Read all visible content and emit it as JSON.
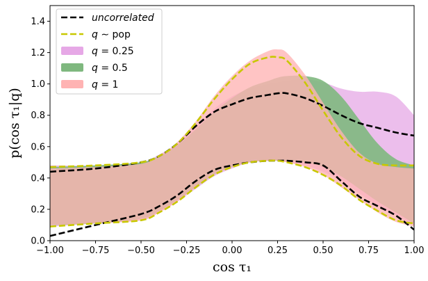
{
  "chart_data": {
    "type": "area",
    "xlabel": "cos τ₁",
    "ylabel": "p(cos τ₁|q)",
    "xlim": [
      -1.0,
      1.0
    ],
    "ylim": [
      0.0,
      1.5
    ],
    "xticks": [
      "−1.00",
      "−0.75",
      "−0.50",
      "−0.25",
      "0.00",
      "0.25",
      "0.50",
      "0.75",
      "1.00"
    ],
    "xtick_values": [
      -1.0,
      -0.75,
      -0.5,
      -0.25,
      0.0,
      0.25,
      0.5,
      0.75,
      1.0
    ],
    "yticks": [
      "0.0",
      "0.2",
      "0.4",
      "0.6",
      "0.8",
      "1.0",
      "1.2",
      "1.4"
    ],
    "ytick_values": [
      0.0,
      0.2,
      0.4,
      0.6,
      0.8,
      1.0,
      1.2,
      1.4
    ],
    "grid": false,
    "legend_position": "top-left",
    "x": [
      -1.0,
      -0.75,
      -0.5,
      -0.4,
      -0.3,
      -0.2,
      -0.1,
      0.0,
      0.1,
      0.2,
      0.25,
      0.3,
      0.4,
      0.5,
      0.6,
      0.7,
      0.8,
      0.9,
      1.0
    ],
    "bands": [
      {
        "name": "q = 0.25",
        "color": "#e6a8e6",
        "opacity": 0.75,
        "upper": [
          0.48,
          0.48,
          0.5,
          0.55,
          0.62,
          0.73,
          0.84,
          0.92,
          0.97,
          1.0,
          1.01,
          1.02,
          1.03,
          1.01,
          0.97,
          0.95,
          0.95,
          0.92,
          0.8
        ],
        "lower": [
          0.09,
          0.11,
          0.13,
          0.18,
          0.25,
          0.33,
          0.41,
          0.46,
          0.5,
          0.51,
          0.51,
          0.5,
          0.48,
          0.44,
          0.38,
          0.3,
          0.22,
          0.16,
          0.1
        ]
      },
      {
        "name": "q = 0.5",
        "color": "#7fb87f",
        "opacity": 0.9,
        "upper": [
          0.47,
          0.48,
          0.5,
          0.54,
          0.61,
          0.71,
          0.82,
          0.91,
          0.98,
          1.02,
          1.04,
          1.05,
          1.05,
          1.02,
          0.92,
          0.77,
          0.62,
          0.52,
          0.48
        ],
        "lower": [
          0.1,
          0.11,
          0.14,
          0.19,
          0.26,
          0.34,
          0.42,
          0.47,
          0.5,
          0.51,
          0.51,
          0.51,
          0.5,
          0.47,
          0.41,
          0.33,
          0.25,
          0.18,
          0.11
        ]
      },
      {
        "name": "q = 1",
        "color": "#ffb3b3",
        "opacity": 0.78,
        "upper": [
          0.46,
          0.47,
          0.49,
          0.54,
          0.63,
          0.76,
          0.92,
          1.05,
          1.15,
          1.21,
          1.22,
          1.2,
          1.06,
          0.88,
          0.7,
          0.56,
          0.49,
          0.47,
          0.46
        ],
        "lower": [
          0.1,
          0.11,
          0.13,
          0.18,
          0.25,
          0.34,
          0.42,
          0.47,
          0.5,
          0.51,
          0.51,
          0.5,
          0.47,
          0.42,
          0.34,
          0.26,
          0.18,
          0.12,
          0.09
        ]
      }
    ],
    "lines": [
      {
        "name": "uncorrelated",
        "color": "#000000",
        "style": "dashed",
        "upper": [
          0.44,
          0.46,
          0.5,
          0.54,
          0.62,
          0.73,
          0.82,
          0.87,
          0.91,
          0.93,
          0.94,
          0.94,
          0.91,
          0.86,
          0.8,
          0.75,
          0.72,
          0.69,
          0.67
        ],
        "lower": [
          0.03,
          0.1,
          0.17,
          0.22,
          0.29,
          0.38,
          0.45,
          0.48,
          0.5,
          0.51,
          0.51,
          0.51,
          0.5,
          0.48,
          0.38,
          0.28,
          0.22,
          0.16,
          0.07
        ]
      },
      {
        "name": "q ~ pop",
        "color": "#c8c800",
        "style": "dashed",
        "upper": [
          0.47,
          0.48,
          0.5,
          0.54,
          0.62,
          0.75,
          0.9,
          1.03,
          1.13,
          1.17,
          1.17,
          1.15,
          1.01,
          0.83,
          0.66,
          0.54,
          0.49,
          0.48,
          0.48
        ],
        "lower": [
          0.09,
          0.11,
          0.13,
          0.18,
          0.25,
          0.34,
          0.42,
          0.47,
          0.5,
          0.51,
          0.51,
          0.5,
          0.47,
          0.42,
          0.35,
          0.26,
          0.19,
          0.13,
          0.11
        ]
      }
    ]
  },
  "legend": {
    "items": [
      {
        "label_parts": [
          "uncorrelated"
        ],
        "kind": "line",
        "color": "#000000"
      },
      {
        "label_parts": [
          "q",
          " ∼ pop"
        ],
        "kind": "line",
        "color": "#c8c800"
      },
      {
        "label_parts": [
          "q",
          " = 0.25"
        ],
        "kind": "patch",
        "color": "#e6a8e6"
      },
      {
        "label_parts": [
          "q",
          " = 0.5"
        ],
        "kind": "patch",
        "color": "#7fb87f"
      },
      {
        "label_parts": [
          "q",
          " = 1"
        ],
        "kind": "patch",
        "color": "#ffb3b3"
      }
    ]
  }
}
